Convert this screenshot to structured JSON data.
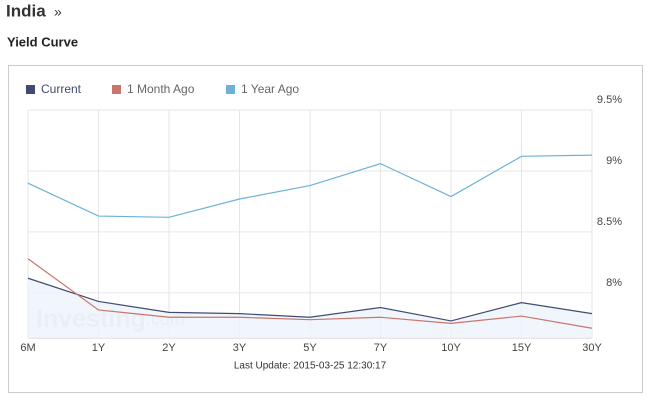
{
  "header": {
    "title": "India",
    "arrow": "»",
    "subtitle": "Yield Curve"
  },
  "chart_data": {
    "type": "line",
    "categories": [
      "6M",
      "1Y",
      "2Y",
      "3Y",
      "5Y",
      "7Y",
      "10Y",
      "15Y",
      "30Y"
    ],
    "series": [
      {
        "name": "Current",
        "color": "#414b72",
        "fill": "#eef4fb",
        "values": [
          8.12,
          7.93,
          7.84,
          7.83,
          7.8,
          7.88,
          7.77,
          7.92,
          7.83
        ]
      },
      {
        "name": "1 Month Ago",
        "color": "#c8766c",
        "values": [
          8.28,
          7.86,
          7.8,
          7.8,
          7.78,
          7.8,
          7.75,
          7.81,
          7.71
        ]
      },
      {
        "name": "1 Year Ago",
        "color": "#6cb2d8",
        "values": [
          8.9,
          8.63,
          8.62,
          8.77,
          8.88,
          9.06,
          8.79,
          9.12,
          9.13
        ]
      }
    ],
    "ylim": [
      7.63,
      9.5
    ],
    "yticks": [
      {
        "value": 9.5,
        "label": "9.5%"
      },
      {
        "value": 9,
        "label": "9%"
      },
      {
        "value": 8.5,
        "label": "8.5%"
      },
      {
        "value": 8,
        "label": "8%"
      }
    ],
    "grid": true,
    "watermark": "Investing",
    "watermark_suffix": ".com",
    "footnote": "Last Update: 2015-03-25 12:30:17"
  }
}
